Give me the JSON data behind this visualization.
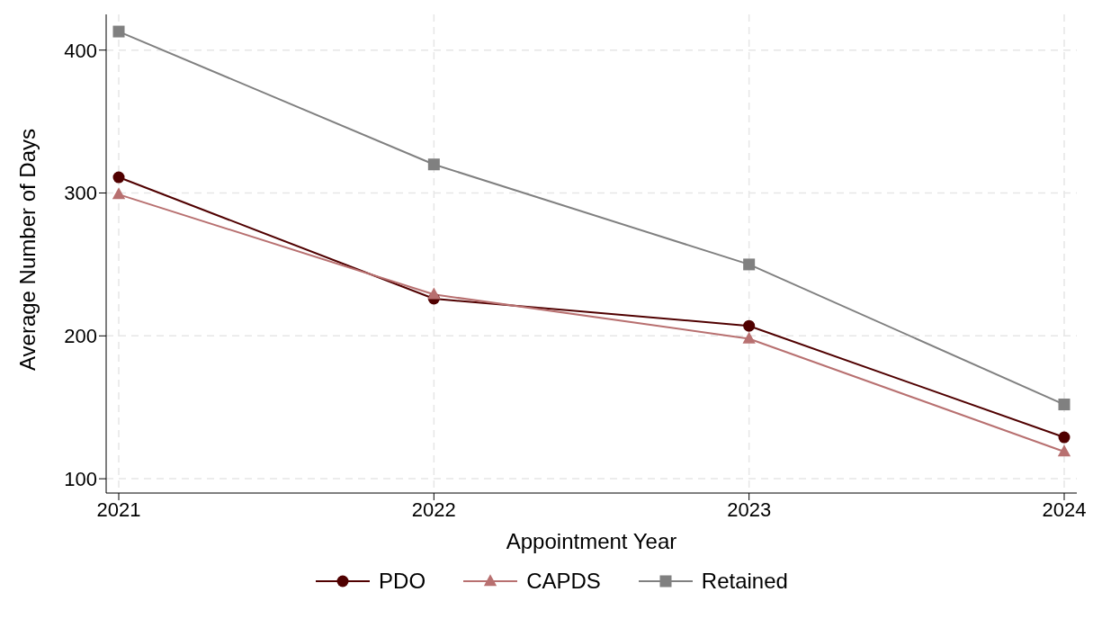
{
  "chart_data": {
    "type": "line",
    "xlabel": "Appointment Year",
    "ylabel": "Average Number of Days",
    "x": [
      2021,
      2022,
      2023,
      2024
    ],
    "series": [
      {
        "name": "PDO",
        "color": "#500000",
        "marker": "circle",
        "values": [
          311,
          226,
          207,
          129
        ]
      },
      {
        "name": "CAPDS",
        "color": "#b87070",
        "marker": "triangle",
        "values": [
          299,
          229,
          198,
          119
        ]
      },
      {
        "name": "Retained",
        "color": "#808080",
        "marker": "square",
        "values": [
          413,
          320,
          250,
          152
        ]
      }
    ],
    "xlim": [
      2020.96,
      2024.04
    ],
    "xticks": [
      2021,
      2022,
      2023,
      2024
    ],
    "ylim": [
      90,
      425
    ],
    "yticks": [
      100,
      200,
      300,
      400
    ],
    "grid": true,
    "legend": "bottom",
    "line_style": "solid"
  }
}
